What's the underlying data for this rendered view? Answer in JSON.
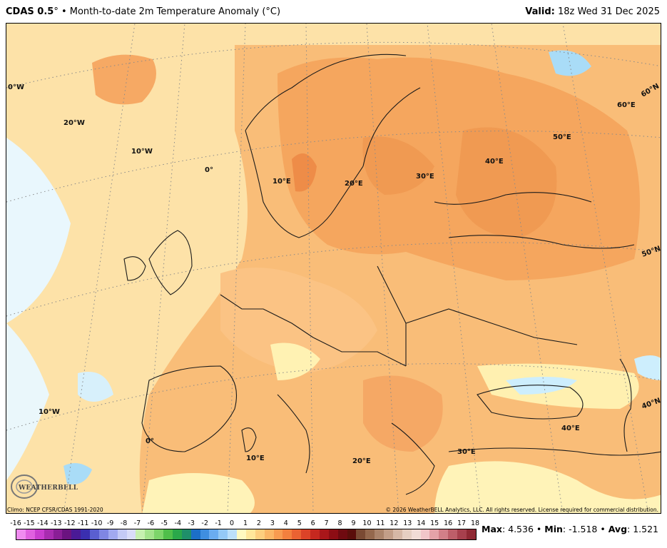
{
  "header": {
    "model": "CDAS 0.5",
    "degree": "°",
    "sep": " • ",
    "product": "Month-to-date 2m Temperature Anomaly (°C)",
    "valid_label": "Valid:",
    "valid_time": "18z Wed 31 Dec 2025"
  },
  "map": {
    "lat_labels": [
      "60°N",
      "50°N",
      "40°N"
    ],
    "lon_labels": [
      "20°W",
      "10°W",
      "0°",
      "10°E",
      "20°E",
      "30°E",
      "40°E",
      "50°E",
      "60°E"
    ],
    "lon_labels_south": [
      "10°W",
      "0°",
      "10°E",
      "20°E",
      "30°E",
      "40°E"
    ],
    "edge_label_west": "0°W",
    "colors": {
      "ocean_base": "#fde2a8",
      "land_warm": "#f9b870",
      "land_warmer": "#f5a35e",
      "land_hot": "#ef8f4e",
      "neutral": "#fff7bf",
      "cool": "#cdeefd",
      "cold": "#a9dcf7",
      "border": "#1a1a1a"
    }
  },
  "logo": {
    "text": "WEATHERBELL"
  },
  "credits": {
    "left": "Climo: NCEP CFSR/CDAS 1991-2020",
    "right": "© 2026 WeatherBELL Analytics, LLC. All rights reserved. License required for commercial distribution."
  },
  "colorbar": {
    "labels": [
      "-16",
      "-15",
      "-14",
      "-13",
      "-12",
      "-11",
      "-10",
      "-9",
      "-8",
      "-7",
      "-6",
      "-5",
      "-4",
      "-3",
      "-2",
      "-1",
      "0",
      "1",
      "2",
      "3",
      "4",
      "5",
      "6",
      "7",
      "8",
      "9",
      "10",
      "11",
      "12",
      "13",
      "14",
      "15",
      "16",
      "17",
      "18"
    ],
    "colors": [
      "#f08cf0",
      "#e060e0",
      "#c93dcf",
      "#a82cb0",
      "#8a1e96",
      "#6b1380",
      "#4a1a96",
      "#3a2fb0",
      "#5a5fd0",
      "#7f86e3",
      "#a1a9f0",
      "#c4caf6",
      "#d9dcf9",
      "#c6f0b0",
      "#a3e38c",
      "#7dd56a",
      "#4fbf4a",
      "#2aa84a",
      "#1f8f6a",
      "#1c6fc7",
      "#3f8ee0",
      "#6aacf0",
      "#94c9f6",
      "#bce0fa",
      "#fffac0",
      "#ffe79b",
      "#fdcf7f",
      "#fbb666",
      "#f89b50",
      "#f3803e",
      "#ea6232",
      "#dc4328",
      "#c6281f",
      "#a9161a",
      "#8d0d14",
      "#6f0a10",
      "#5a0e0a",
      "#7a4a33",
      "#94684d",
      "#ab846b",
      "#c29e88",
      "#d6b8a6",
      "#e6cfc2",
      "#f1dcd6",
      "#f0c6c9",
      "#e4a2a8",
      "#d27f88",
      "#bd5e69",
      "#a7404d",
      "#8f2833"
    ]
  },
  "stats": {
    "max_label": "Max",
    "max_value": "4.536",
    "min_label": "Min",
    "min_value": "-1.518",
    "avg_label": "Avg",
    "avg_value": "1.521",
    "sep": " • "
  }
}
